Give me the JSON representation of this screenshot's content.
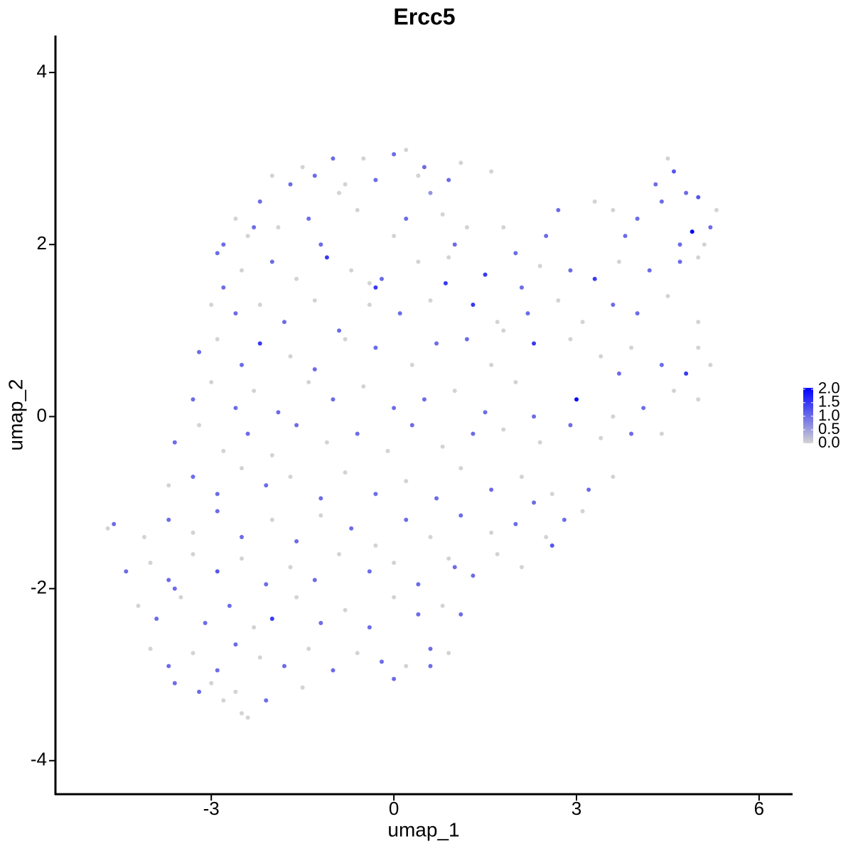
{
  "chart_data": {
    "type": "scatter",
    "title": "Ercc5",
    "xlabel": "umap_1",
    "ylabel": "umap_2",
    "xlim": [
      -5.56,
      6.55
    ],
    "ylim": [
      -4.39,
      4.43
    ],
    "xticks": [
      -3,
      0,
      3,
      6
    ],
    "yticks": [
      -4,
      -2,
      0,
      2,
      4
    ],
    "low_color": "#d3d3d3",
    "high_color": "#0000ff",
    "color_lim": [
      0,
      2.05
    ],
    "color_ticks": [
      {
        "value": 0,
        "label": "0.0"
      },
      {
        "value": 0.5,
        "label": "0.5"
      },
      {
        "value": 1,
        "label": "1.0"
      },
      {
        "value": 1.5,
        "label": "1.5"
      },
      {
        "value": 2,
        "label": "2.0"
      }
    ],
    "x": [
      -1.5,
      -1.0,
      -0.5,
      0,
      0.2,
      0.5,
      1.1,
      4.5,
      -2.0,
      -1.7,
      -1.3,
      -0.8,
      -0.3,
      0.4,
      0.9,
      1.6,
      4.3,
      4.6,
      4.8,
      5.0,
      -2.2,
      -0.9,
      0.6,
      -2.6,
      -2.3,
      -1.9,
      -1.4,
      -0.6,
      0.2,
      0.8,
      1.2,
      3.3,
      3.6,
      4.0,
      4.4,
      5.3,
      5.2,
      2.7,
      -2.8,
      -2.4,
      -1.2,
      0.0,
      1.0,
      2.5,
      3.8,
      4.7,
      4.9,
      5.1,
      1.8,
      -2.9,
      -2.5,
      -2.0,
      -1.6,
      -1.1,
      -0.7,
      -0.2,
      0.4,
      0.9,
      1.5,
      2.0,
      2.4,
      2.9,
      3.3,
      3.7,
      4.2,
      4.7,
      5.0,
      -2.8,
      -0.4,
      0.85,
      2.1,
      -3.0,
      -2.6,
      -2.2,
      -1.8,
      -1.3,
      -0.9,
      -0.4,
      0.1,
      0.6,
      1.3,
      1.8,
      2.2,
      2.7,
      3.1,
      3.6,
      4.0,
      4.5,
      5.0,
      -0.3,
      1.7,
      -2.9,
      -3.2,
      -2.5,
      -2.2,
      -1.7,
      -1.3,
      -0.8,
      -0.3,
      0.3,
      0.7,
      1.2,
      1.6,
      2.3,
      2.9,
      3.4,
      3.9,
      4.4,
      5.0,
      4.8,
      5.2,
      -3.3,
      -3.0,
      -2.6,
      -2.3,
      -1.9,
      -1.4,
      -1.0,
      -0.5,
      0.0,
      0.5,
      1.0,
      1.5,
      2.0,
      3.0,
      3.6,
      4.1,
      4.6,
      5.0,
      3.7,
      -3.6,
      -3.2,
      -2.8,
      -2.4,
      -2.0,
      -1.6,
      -1.1,
      -0.6,
      -0.1,
      0.3,
      0.8,
      1.3,
      1.8,
      2.4,
      2.9,
      3.4,
      3.9,
      4.4,
      2.3,
      -3.7,
      -3.3,
      -2.9,
      -2.5,
      -2.1,
      -1.7,
      -1.2,
      -0.8,
      -0.3,
      0.2,
      0.7,
      1.1,
      1.6,
      2.1,
      2.6,
      3.2,
      3.6,
      2.3,
      -4.7,
      -4.6,
      -4.1,
      -3.7,
      -3.3,
      -2.9,
      -2.5,
      -2.0,
      -1.6,
      -1.2,
      -0.7,
      -0.3,
      0.2,
      0.6,
      1.1,
      1.6,
      2.0,
      2.5,
      2.8,
      3.1,
      2.6,
      -4.4,
      -4.0,
      -3.7,
      -3.3,
      -2.9,
      -2.5,
      -2.1,
      -1.7,
      -1.3,
      -0.9,
      -0.4,
      0.0,
      0.4,
      0.9,
      1.3,
      1.7,
      2.1,
      1.0,
      -4.2,
      -3.9,
      -3.5,
      -3.1,
      -2.7,
      -2.3,
      -2.0,
      -1.6,
      -1.2,
      -0.8,
      -0.4,
      0.0,
      0.4,
      0.8,
      1.1,
      -3.6,
      -4.0,
      -3.7,
      -3.3,
      -2.9,
      -2.6,
      -2.2,
      -1.8,
      -1.4,
      -1.0,
      -0.6,
      -0.2,
      0.2,
      0.6,
      0.9,
      0.6,
      -3.6,
      -3.2,
      -2.8,
      -2.5,
      -2.4,
      -2.1,
      -1.5,
      -2.6,
      0.0,
      -3.0
    ],
    "values": [
      2.9,
      3.0,
      3.0,
      3.05,
      3.1,
      2.9,
      2.95,
      3.0,
      2.8,
      2.7,
      2.8,
      2.7,
      2.75,
      2.8,
      2.75,
      2.85,
      2.7,
      2.85,
      2.6,
      2.55,
      2.5,
      2.6,
      2.6,
      2.3,
      2.2,
      2.2,
      2.3,
      2.4,
      2.3,
      2.35,
      2.2,
      2.5,
      2.4,
      2.3,
      2.5,
      2.4,
      2.2,
      2.4,
      2.0,
      2.1,
      2.0,
      2.1,
      2.0,
      2.1,
      2.1,
      2.0,
      2.15,
      2.0,
      2.2,
      1.9,
      1.7,
      1.8,
      1.6,
      1.85,
      1.7,
      1.6,
      1.8,
      1.85,
      1.65,
      1.9,
      1.75,
      1.7,
      1.6,
      1.8,
      1.7,
      1.8,
      1.85,
      1.5,
      1.55,
      1.55,
      1.5,
      1.3,
      1.2,
      1.3,
      1.1,
      1.35,
      1.0,
      1.3,
      1.2,
      1.35,
      1.3,
      1.0,
      1.2,
      1.35,
      1.1,
      1.3,
      1.2,
      1.4,
      1.1,
      1.5,
      1.1,
      0.9,
      0.75,
      0.6,
      0.85,
      0.7,
      0.55,
      0.9,
      0.8,
      0.6,
      0.85,
      0.9,
      0.6,
      0.85,
      0.9,
      0.7,
      0.8,
      0.6,
      0.8,
      0.5,
      0.6,
      0.2,
      0.4,
      0.1,
      0.3,
      0.05,
      0.4,
      0.2,
      0.35,
      0.1,
      0.2,
      0.3,
      0.05,
      0.4,
      0.2,
      0.0,
      0.1,
      0.3,
      0.2,
      0.5,
      -0.3,
      -0.1,
      -0.4,
      -0.2,
      -0.45,
      -0.1,
      -0.3,
      -0.2,
      -0.4,
      -0.1,
      -0.35,
      -0.2,
      -0.15,
      -0.3,
      -0.1,
      -0.25,
      -0.2,
      -0.2,
      0.0,
      -0.8,
      -0.7,
      -0.9,
      -0.6,
      -0.8,
      -0.7,
      -0.95,
      -0.65,
      -0.9,
      -0.75,
      -0.95,
      -0.6,
      -0.85,
      -0.7,
      -0.9,
      -0.85,
      -0.7,
      -1.0,
      -1.3,
      -1.25,
      -1.4,
      -1.2,
      -1.35,
      -1.1,
      -1.4,
      -1.2,
      -1.45,
      -1.15,
      -1.3,
      -1.5,
      -1.2,
      -1.4,
      -1.15,
      -1.35,
      -1.25,
      -1.4,
      -1.2,
      -1.1,
      -1.5,
      -1.8,
      -1.7,
      -1.9,
      -1.6,
      -1.8,
      -1.65,
      -1.95,
      -1.75,
      -1.9,
      -1.6,
      -1.8,
      -1.7,
      -1.95,
      -1.65,
      -1.85,
      -1.6,
      -1.75,
      -1.75,
      -2.2,
      -2.35,
      -2.1,
      -2.4,
      -2.2,
      -2.45,
      -2.35,
      -2.1,
      -2.4,
      -2.25,
      -2.45,
      -2.1,
      -2.3,
      -2.2,
      -2.3,
      -2.0,
      -2.7,
      -2.9,
      -2.75,
      -2.95,
      -2.65,
      -2.8,
      -2.9,
      -2.7,
      -2.95,
      -2.75,
      -2.85,
      -2.9,
      -2.7,
      -2.75,
      -2.9,
      -3.1,
      -3.2,
      -3.3,
      -3.45,
      -3.5,
      -3.3,
      -3.15,
      -3.2,
      -3.05,
      -3.1
    ],
    "expression": [
      0,
      1,
      0,
      1,
      0,
      1,
      0,
      0,
      0,
      1,
      1,
      0,
      1,
      0,
      1,
      0,
      1,
      1.2,
      1,
      1.2,
      1,
      0,
      0.6,
      0,
      1,
      0,
      1,
      0,
      1,
      0,
      0,
      0,
      0,
      1,
      1,
      0,
      1,
      1,
      1,
      0,
      1,
      0,
      1,
      1,
      1,
      1,
      2.0,
      0,
      0,
      1,
      0,
      1,
      0,
      1.5,
      0,
      1,
      0,
      0,
      1.5,
      1,
      0,
      1,
      1.5,
      0,
      1,
      1,
      0,
      1,
      0,
      1.5,
      1,
      0,
      1,
      0,
      1,
      0,
      1,
      0,
      1,
      0,
      1.5,
      0,
      1,
      0,
      0,
      1,
      1,
      0,
      0,
      1.5,
      0,
      0,
      1,
      1,
      1.5,
      0,
      1,
      0,
      1,
      0,
      1,
      1,
      0,
      1.5,
      0,
      0,
      0,
      1,
      0,
      1.5,
      0,
      1,
      0,
      1,
      0,
      1,
      0,
      1,
      0,
      1,
      1,
      0,
      1,
      0,
      2.0,
      0,
      1,
      0,
      0,
      1,
      1,
      0,
      0,
      1,
      0,
      1,
      0,
      1,
      0,
      1,
      0,
      1,
      0,
      0,
      1,
      0,
      1,
      0,
      1,
      0,
      1,
      1,
      0,
      1,
      0,
      1,
      0,
      1,
      0,
      1,
      0,
      1,
      0,
      0,
      1,
      0,
      1,
      0,
      1,
      0,
      1,
      0,
      1,
      1,
      0,
      1,
      0,
      1,
      0,
      1,
      0,
      1,
      0,
      1,
      0,
      1,
      0,
      1.2,
      1,
      0,
      1,
      0,
      1.2,
      0,
      1,
      0,
      1,
      0,
      1,
      0,
      1,
      0,
      1,
      0,
      0,
      1,
      0,
      1,
      0,
      1,
      1,
      0,
      1.5,
      0,
      1,
      0,
      1,
      0,
      1,
      0,
      1,
      1,
      0,
      1,
      0,
      1,
      1,
      0,
      1,
      0,
      1,
      0,
      1,
      0,
      1,
      0,
      1,
      1,
      1,
      0,
      0,
      0,
      1,
      0,
      0,
      1,
      0
    ]
  }
}
